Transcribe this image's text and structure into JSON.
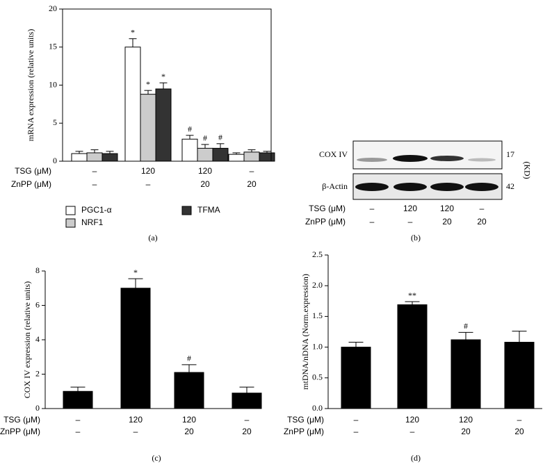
{
  "chart_data": [
    {
      "type": "bar",
      "label": "(a)",
      "ylabel": "mRNA expression (relative units)",
      "ylim": [
        0,
        20
      ],
      "yticks": [
        0,
        5,
        10,
        15,
        20
      ],
      "frame": true,
      "conditions": [
        {
          "label": "TSG (μM)",
          "values": [
            "–",
            "120",
            "120",
            "–"
          ]
        },
        {
          "label": "ZnPP (μM)",
          "values": [
            "–",
            "–",
            "20",
            "20"
          ]
        }
      ],
      "series": [
        {
          "name": "PGC1-α",
          "color": "#ffffff",
          "values": [
            1.0,
            15.0,
            2.9,
            0.9
          ],
          "errors": [
            0.3,
            1.1,
            0.5,
            0.2
          ],
          "annotations": [
            null,
            "*",
            "#",
            null
          ]
        },
        {
          "name": "NRF1",
          "color": "#cccccc",
          "values": [
            1.1,
            8.8,
            1.7,
            1.2
          ],
          "errors": [
            0.4,
            0.5,
            0.5,
            0.3
          ],
          "annotations": [
            null,
            "*",
            "#",
            null
          ]
        },
        {
          "name": "TFMA",
          "color": "#333333",
          "values": [
            1.0,
            9.5,
            1.7,
            1.1
          ],
          "errors": [
            0.3,
            0.8,
            0.6,
            0.2
          ],
          "annotations": [
            null,
            "*",
            "#",
            null
          ]
        }
      ]
    },
    {
      "type": "blot",
      "label": "(b)",
      "bands": [
        "COX IV",
        "β-Actin"
      ],
      "sizes": [
        17,
        42
      ],
      "size_unit": "(KD)",
      "conditions": [
        {
          "label": "TSG (μM)",
          "values": [
            "–",
            "120",
            "120",
            "–"
          ]
        },
        {
          "label": "ZnPP (μM)",
          "values": [
            "–",
            "–",
            "20",
            "20"
          ]
        }
      ]
    },
    {
      "type": "bar",
      "label": "(c)",
      "ylabel": "COX IV expression (relative units)",
      "ylim": [
        0,
        8
      ],
      "yticks": [
        0,
        2,
        4,
        6,
        8
      ],
      "frame": false,
      "color": "#000000",
      "conditions": [
        {
          "label": "TSG (μM)",
          "values": [
            "–",
            "120",
            "120",
            "–"
          ]
        },
        {
          "label": "ZnPP (μM)",
          "values": [
            "–",
            "–",
            "20",
            "20"
          ]
        }
      ],
      "values": [
        1.0,
        7.0,
        2.1,
        0.9
      ],
      "errors": [
        0.25,
        0.55,
        0.45,
        0.35
      ],
      "annotations": [
        null,
        "*",
        "#",
        null
      ]
    },
    {
      "type": "bar",
      "label": "(d)",
      "ylabel": "mtDNA/nDNA (Norm.expression)",
      "ylim": [
        0,
        2.5
      ],
      "yticks": [
        {
          "value": 0,
          "label": "0.0"
        },
        0.5,
        {
          "value": 1,
          "label": "1.0"
        },
        1.5,
        {
          "value": 2,
          "label": "2.0"
        },
        2.5
      ],
      "frame": false,
      "color": "#000000",
      "conditions": [
        {
          "label": "TSG (μM)",
          "values": [
            "–",
            "120",
            "120",
            "–"
          ]
        },
        {
          "label": "ZnPP (μM)",
          "values": [
            "–",
            "–",
            "20",
            "20"
          ]
        }
      ],
      "values": [
        1.0,
        1.69,
        1.12,
        1.08
      ],
      "errors": [
        0.08,
        0.05,
        0.12,
        0.18
      ],
      "annotations": [
        null,
        "**",
        "#",
        null
      ]
    }
  ]
}
